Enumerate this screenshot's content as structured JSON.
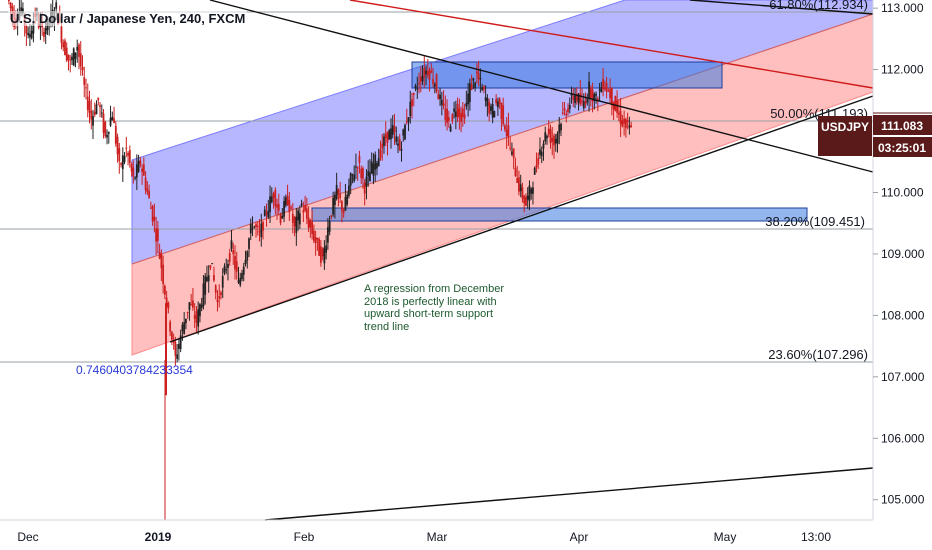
{
  "header": {
    "symbol_title": "U.S. Dollar / Japanese Yen, 240, FXCM"
  },
  "price_axis": {
    "ticks": [
      "113.000",
      "112.000",
      "111.000",
      "110.000",
      "109.000",
      "108.000",
      "107.000",
      "106.000",
      "105.000"
    ],
    "last_price_tag": {
      "symbol": "USDJPY",
      "price": "111.083",
      "countdown": "03:25:01",
      "color": "#5b1a1a"
    }
  },
  "time_axis": {
    "ticks": [
      "Dec",
      "2019",
      "Feb",
      "Mar",
      "Apr",
      "May",
      "13:00"
    ]
  },
  "fibonacci": [
    {
      "level": "61.80%",
      "price": "(112.934)",
      "text": "61.80%(112.934)"
    },
    {
      "level": "50.00%",
      "price": "(111.193)",
      "text": "50.00%(111.193)"
    },
    {
      "level": "38.20%",
      "price": "(109.451)",
      "text": "38.20%(109.451)"
    },
    {
      "level": "23.60%",
      "price": "(107.296)",
      "text": "23.60%(107.296)"
    }
  ],
  "regression_label": "0.7460403784233354",
  "annotation": "A regression from December 2018 is perfectly linear with upward short-term support trend line",
  "colors": {
    "channel_upper": "#7b7bff",
    "channel_lower": "#ff8a8a",
    "zone": "#3d7ae0",
    "candle_up": "#222222",
    "candle_down": "#cc1f1f",
    "red_line": "#d11a1a",
    "trend_line": "#111111",
    "fib_line": "#9aa0a6"
  },
  "chart_data": {
    "type": "candlestick",
    "instrument": "USDJPY",
    "timeframe": "240",
    "source": "FXCM",
    "y_range": [
      104.8,
      113.1
    ],
    "price_ticks": [
      105,
      106,
      107,
      108,
      109,
      110,
      111,
      112,
      113
    ],
    "last_price": 111.083,
    "fib_levels": [
      {
        "ratio": 61.8,
        "price": 112.934
      },
      {
        "ratio": 50.0,
        "price": 111.193
      },
      {
        "ratio": 38.2,
        "price": 109.451
      },
      {
        "ratio": 23.6,
        "price": 107.296
      }
    ],
    "price_path": [
      [
        113.2,
        112.8,
        113.0,
        112.5,
        112.9,
        112.6,
        112.8,
        113.0,
        112.4,
        112.1,
        112.4,
        111.7,
        111.2,
        111.5,
        110.9,
        111.3,
        110.4,
        110.7,
        110.2,
        110.5,
        110.0,
        109.5,
        108.8,
        108.0,
        107.3,
        107.8,
        108.2,
        107.9,
        108.4,
        108.9,
        108.2,
        108.7,
        109.1,
        108.5,
        109.0,
        109.5,
        109.3,
        109.7,
        110.0,
        109.6,
        109.9,
        109.4,
        109.8,
        109.5,
        109.2,
        108.9,
        109.6,
        110.0,
        109.7,
        110.2,
        110.5,
        110.1,
        110.4,
        110.6,
        110.9,
        111.0,
        110.7,
        111.2,
        111.6,
        111.9,
        112.0,
        111.8,
        111.4,
        111.1,
        111.4,
        111.2,
        111.7,
        111.9,
        111.6,
        111.3,
        111.5,
        111.1,
        110.6,
        110.1,
        109.8,
        110.2,
        110.7,
        111.0,
        110.8,
        111.2,
        111.4,
        111.6,
        111.4,
        111.7,
        111.5,
        111.8,
        111.6,
        111.3,
        111.1,
        111.0
      ]
    ]
  }
}
